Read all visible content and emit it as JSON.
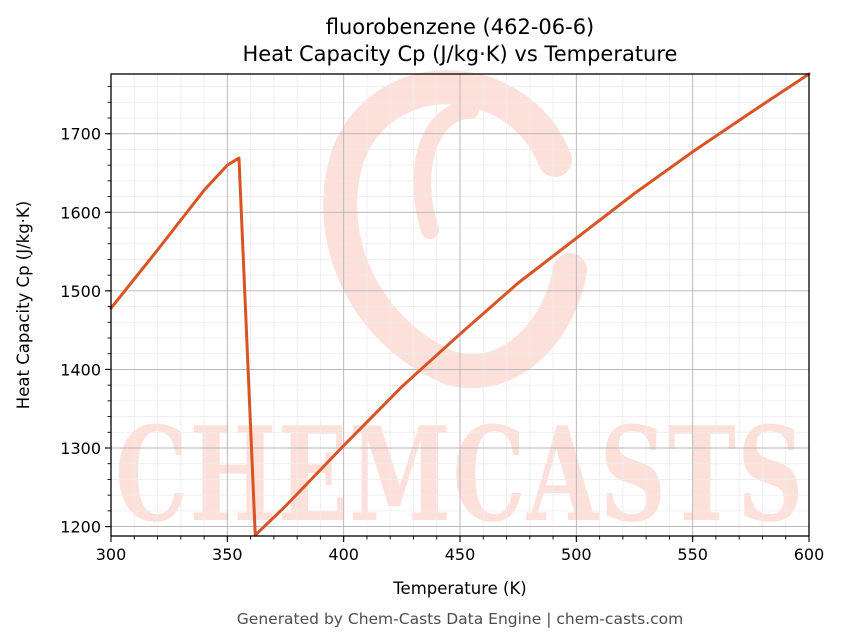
{
  "chart_data": {
    "type": "line",
    "title": "fluorobenzene (462-06-6)",
    "subtitle": "Heat Capacity Cp (J/kg·K) vs Temperature",
    "xlabel": "Temperature (K)",
    "ylabel": "Heat Capacity Cp (J/kg·K)",
    "xlim": [
      300,
      600
    ],
    "ylim": [
      1188,
      1776
    ],
    "xticks": [
      300,
      350,
      400,
      450,
      500,
      550,
      600
    ],
    "yticks": [
      1200,
      1300,
      1400,
      1500,
      1600,
      1700
    ],
    "grid": true,
    "series": [
      {
        "color": "#d95323",
        "points": [
          [
            300,
            1478
          ],
          [
            310,
            1515
          ],
          [
            320,
            1552
          ],
          [
            330,
            1590
          ],
          [
            340,
            1628
          ],
          [
            350,
            1660
          ],
          [
            355,
            1669
          ],
          [
            362,
            1189
          ],
          [
            375,
            1226
          ],
          [
            400,
            1303
          ],
          [
            425,
            1378
          ],
          [
            450,
            1445
          ],
          [
            475,
            1510
          ],
          [
            500,
            1567
          ],
          [
            525,
            1624
          ],
          [
            550,
            1677
          ],
          [
            575,
            1727
          ],
          [
            600,
            1776
          ]
        ]
      }
    ]
  },
  "watermark": {
    "text": "CHEMCASTS",
    "color": "#fde0da"
  },
  "footer": "Generated by Chem-Casts Data Engine | chem-casts.com"
}
